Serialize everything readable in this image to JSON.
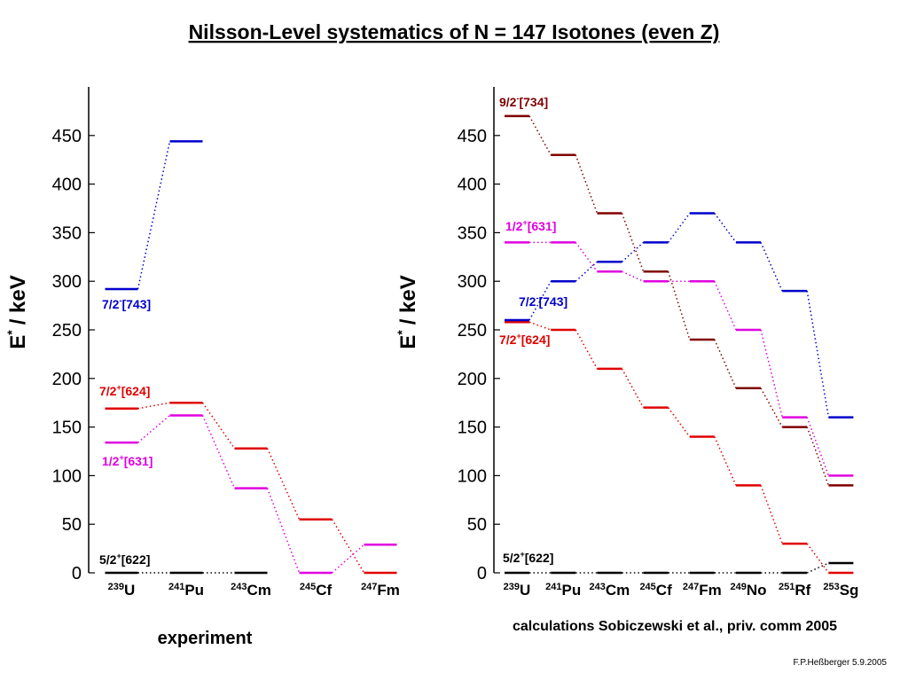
{
  "title": "Nilsson-Level systematics of N = 147 Isotones (even Z)",
  "footer": "F.P.Heßberger 5.9.2005",
  "chart_data": [
    {
      "type": "level",
      "caption": "experiment",
      "ylabel": {
        "symbol": "E",
        "sup": "*",
        "unit": "/ keV"
      },
      "categories": [
        {
          "mass": "239",
          "element": "U"
        },
        {
          "mass": "241",
          "element": "Pu"
        },
        {
          "mass": "243",
          "element": "Cm"
        },
        {
          "mass": "245",
          "element": "Cf"
        },
        {
          "mass": "247",
          "element": "Fm"
        }
      ],
      "ylim": [
        0,
        500
      ],
      "yticks": [
        0,
        50,
        100,
        150,
        200,
        250,
        300,
        350,
        400,
        450
      ],
      "series": [
        {
          "name": {
            "j": "5/2",
            "parity": "+",
            "orbit": "[622]"
          },
          "color": "#000000",
          "values": [
            0,
            0,
            0,
            null,
            null
          ]
        },
        {
          "name": {
            "j": "7/2",
            "parity": "+",
            "orbit": "[624]"
          },
          "color": "#e00000",
          "values": [
            169,
            175,
            128,
            55,
            0
          ]
        },
        {
          "name": {
            "j": "1/2",
            "parity": "+",
            "orbit": "[631]"
          },
          "color": "#e000e0",
          "values": [
            134,
            162,
            87,
            0,
            29
          ]
        },
        {
          "name": {
            "j": "7/2",
            "parity": "-",
            "orbit": "[743]"
          },
          "color": "#0000cc",
          "values": [
            292,
            444,
            null,
            null,
            null
          ]
        }
      ]
    },
    {
      "type": "level",
      "caption": "calculations Sobiczewski et al., priv. comm 2005",
      "ylabel": {
        "symbol": "E",
        "sup": "*",
        "unit": "/ keV"
      },
      "categories": [
        {
          "mass": "239",
          "element": "U"
        },
        {
          "mass": "241",
          "element": "Pu"
        },
        {
          "mass": "243",
          "element": "Cm"
        },
        {
          "mass": "245",
          "element": "Cf"
        },
        {
          "mass": "247",
          "element": "Fm"
        },
        {
          "mass": "249",
          "element": "No"
        },
        {
          "mass": "251",
          "element": "Rf"
        },
        {
          "mass": "253",
          "element": "Sg"
        }
      ],
      "ylim": [
        0,
        500
      ],
      "yticks": [
        0,
        50,
        100,
        150,
        200,
        250,
        300,
        350,
        400,
        450
      ],
      "series": [
        {
          "name": {
            "j": "5/2",
            "parity": "+",
            "orbit": "[622]"
          },
          "color": "#000000",
          "values": [
            0,
            0,
            0,
            0,
            0,
            0,
            0,
            10
          ]
        },
        {
          "name": {
            "j": "7/2",
            "parity": "+",
            "orbit": "[624]"
          },
          "color": "#e00000",
          "values": [
            258,
            250,
            210,
            170,
            140,
            90,
            30,
            0
          ]
        },
        {
          "name": {
            "j": "1/2",
            "parity": "+",
            "orbit": "[631]"
          },
          "color": "#e000e0",
          "values": [
            340,
            340,
            310,
            300,
            300,
            250,
            160,
            100
          ]
        },
        {
          "name": {
            "j": "7/2",
            "parity": "-",
            "orbit": "[743]"
          },
          "color": "#0000cc",
          "values": [
            260,
            300,
            320,
            340,
            370,
            340,
            290,
            160
          ]
        },
        {
          "name": {
            "j": "9/2",
            "parity": "-",
            "orbit": "[734]"
          },
          "color": "#800000",
          "values": [
            470,
            430,
            370,
            310,
            240,
            190,
            150,
            90
          ]
        }
      ]
    }
  ]
}
